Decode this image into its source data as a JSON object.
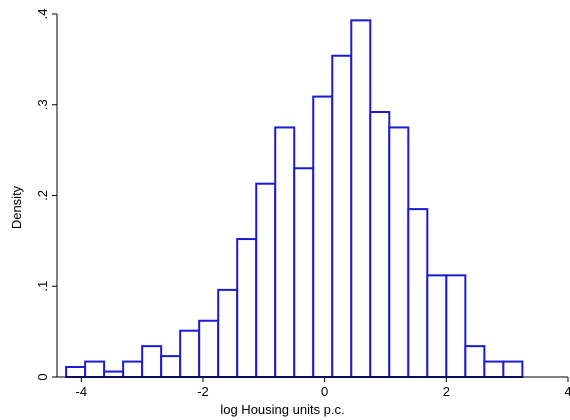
{
  "chart_data": {
    "type": "bar",
    "subtype": "histogram",
    "xlabel": "log Housing units p.c.",
    "ylabel": "Density",
    "xlim": [
      -4.4,
      4
    ],
    "ylim": [
      0,
      0.4
    ],
    "xticks": [
      -4,
      -2,
      0,
      2,
      4
    ],
    "xtick_labels": [
      "-4",
      "-2",
      "0",
      "2",
      "4"
    ],
    "yticks": [
      0,
      0.1,
      0.2,
      0.3,
      0.4
    ],
    "ytick_labels": [
      "0",
      ".1",
      ".2",
      ".3",
      ".4"
    ],
    "bin_width": 0.3125,
    "bins": [
      {
        "x0": -4.25,
        "value": 0.011
      },
      {
        "x0": -3.9375,
        "value": 0.017
      },
      {
        "x0": -3.625,
        "value": 0.006
      },
      {
        "x0": -3.3125,
        "value": 0.017
      },
      {
        "x0": -3.0,
        "value": 0.034
      },
      {
        "x0": -2.6875,
        "value": 0.023
      },
      {
        "x0": -2.375,
        "value": 0.051
      },
      {
        "x0": -2.0625,
        "value": 0.062
      },
      {
        "x0": -1.75,
        "value": 0.096
      },
      {
        "x0": -1.4375,
        "value": 0.152
      },
      {
        "x0": -1.125,
        "value": 0.213
      },
      {
        "x0": -0.8125,
        "value": 0.275
      },
      {
        "x0": -0.5,
        "value": 0.23
      },
      {
        "x0": -0.1875,
        "value": 0.309
      },
      {
        "x0": 0.125,
        "value": 0.354
      },
      {
        "x0": 0.4375,
        "value": 0.393
      },
      {
        "x0": 0.75,
        "value": 0.292
      },
      {
        "x0": 1.0625,
        "value": 0.275
      },
      {
        "x0": 1.375,
        "value": 0.185
      },
      {
        "x0": 1.6875,
        "value": 0.112
      },
      {
        "x0": 2.0,
        "value": 0.112
      },
      {
        "x0": 2.3125,
        "value": 0.034
      },
      {
        "x0": 2.625,
        "value": 0.017
      },
      {
        "x0": 2.9375,
        "value": 0.017
      }
    ],
    "bar_fill": "#ffffff",
    "bar_stroke": "#1a1ad6",
    "grid": false,
    "legend": "none"
  }
}
